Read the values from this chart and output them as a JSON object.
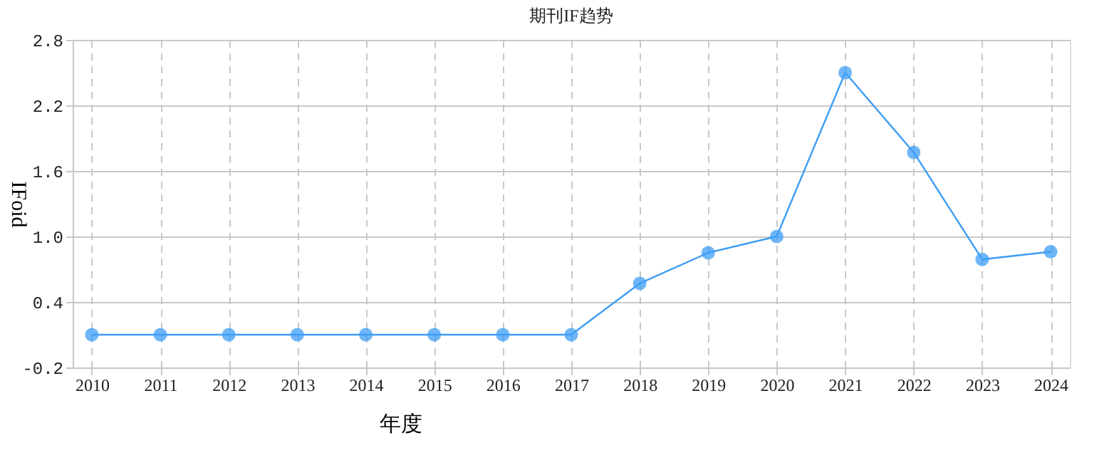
{
  "chart_data": {
    "type": "line",
    "title": "期刊IF趋势",
    "xlabel": "年度",
    "ylabel": "IFoid",
    "categories": [
      "2010",
      "2011",
      "2012",
      "2013",
      "2014",
      "2015",
      "2016",
      "2017",
      "2018",
      "2019",
      "2020",
      "2021",
      "2022",
      "2023",
      "2024"
    ],
    "series": [
      {
        "color": "#3d9df5",
        "values": [
          0.1,
          0.1,
          0.1,
          0.1,
          0.1,
          0.1,
          0.1,
          0.1,
          0.57,
          0.85,
          1.0,
          2.5,
          1.77,
          0.79,
          0.86
        ]
      }
    ],
    "ylim": [
      -0.2,
      2.8
    ],
    "yticks": [
      -0.2,
      0.4,
      {
        "value": 1,
        "label": "1.0"
      },
      1.6,
      2.2,
      2.8
    ],
    "grid": true,
    "marker": "circle",
    "line_style": "solid",
    "legend": false
  }
}
